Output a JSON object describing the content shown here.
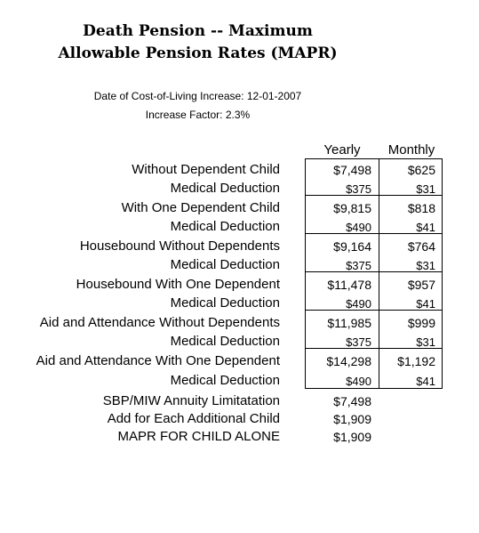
{
  "title_line1": "Death Pension -- Maximum",
  "title_line2": "Allowable Pension Rates (MAPR)",
  "cola_date": "Date of Cost-of-Living Increase: 12-01-2007",
  "increase_factor": "Increase Factor: 2.3%",
  "columns": {
    "yearly": "Yearly",
    "monthly": "Monthly"
  },
  "rows": [
    {
      "label": "Without Dependent Child",
      "yearly": "$7,498",
      "monthly": "$625"
    },
    {
      "label": "Medical Deduction",
      "yearly": "$375",
      "monthly": "$31"
    },
    {
      "label": "With One Dependent Child",
      "yearly": "$9,815",
      "monthly": "$818"
    },
    {
      "label": "Medical Deduction",
      "yearly": "$490",
      "monthly": "$41"
    },
    {
      "label": "Housebound Without Dependents",
      "yearly": "$9,164",
      "monthly": "$764"
    },
    {
      "label": "Medical Deduction",
      "yearly": "$375",
      "monthly": "$31"
    },
    {
      "label": "Housebound With One Dependent",
      "yearly": "$11,478",
      "monthly": "$957"
    },
    {
      "label": "Medical Deduction",
      "yearly": "$490",
      "monthly": "$41"
    },
    {
      "label": "Aid and Attendance Without Dependents",
      "yearly": "$11,985",
      "monthly": "$999"
    },
    {
      "label": "Medical Deduction",
      "yearly": "$375",
      "monthly": "$31"
    },
    {
      "label": "Aid and Attendance With One Dependent",
      "yearly": "$14,298",
      "monthly": "$1,192"
    },
    {
      "label": "Medical Deduction",
      "yearly": "$490",
      "monthly": "$41"
    }
  ],
  "extras": [
    {
      "label": "SBP/MIW Annuity Limitatation",
      "yearly": "$7,498"
    },
    {
      "label": "Add for Each Additional Child",
      "yearly": "$1,909"
    },
    {
      "label": "MAPR FOR CHILD ALONE",
      "yearly": "$1,909"
    }
  ]
}
